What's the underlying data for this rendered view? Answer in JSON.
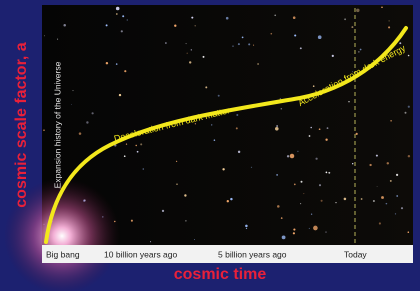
{
  "diagram": {
    "y_axis_label": "cosmic scale factor, a",
    "x_axis_label": "cosmic time",
    "panel_title": "Expansion history of the Universe",
    "curve_labels": [
      "Deceleration from dark matter",
      "Acceleration from dark energy"
    ],
    "time_labels": [
      "Big bang",
      "10 billion years ago",
      "5 billion years ago",
      "Today"
    ]
  }
}
